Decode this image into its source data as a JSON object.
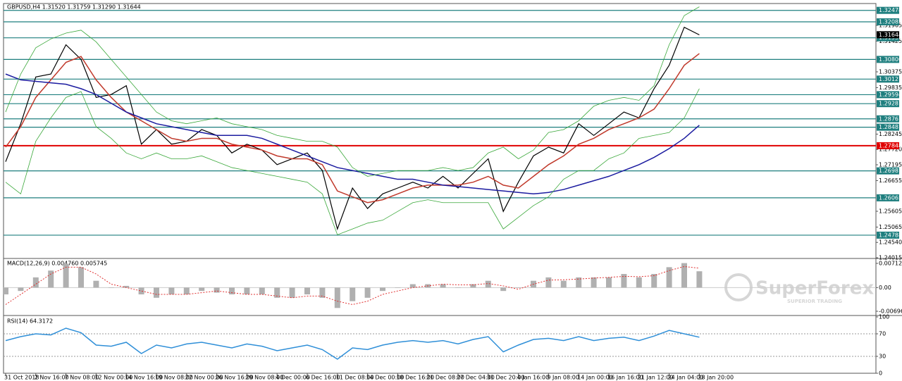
{
  "chart_data": [
    {
      "type": "line",
      "title": "GBPUSD,H4  1.31520 1.31759 1.31290 1.31644",
      "categories": [
        "31 Oct 2018",
        null,
        "2 Nov 16:00",
        null,
        "7 Nov 08:00",
        null,
        "12 Nov 00:00",
        null,
        "14 Nov 16:00",
        null,
        "19 Nov 08:00",
        null,
        "22 Nov 00:00",
        null,
        "26 Nov 16:00",
        null,
        "29 Nov 08:00",
        null,
        "4 Dec 00:00",
        null,
        "6 Dec 16:00",
        null,
        "11 Dec 08:00",
        null,
        "14 Dec 00:00",
        null,
        "18 Dec 16:00",
        null,
        "21 Dec 08:00",
        null,
        "27 Dec 04:00",
        null,
        "31 Dec 20:00",
        null,
        "4 Jan 16:00",
        null,
        "9 Jan 08:00",
        null,
        "14 Jan 00:00",
        null,
        "16 Jan 16:00",
        null,
        "21 Jan 12:00",
        null,
        "24 Jan 04:00",
        null,
        "28 Jan 20:00"
      ],
      "series": [
        {
          "color": "#000000",
          "values": [
            1.273,
            1.286,
            1.302,
            1.303,
            1.313,
            1.308,
            1.295,
            1.296,
            1.299,
            1.279,
            1.284,
            1.279,
            1.28,
            1.284,
            1.282,
            1.276,
            1.279,
            1.277,
            1.272,
            1.274,
            1.276,
            1.27,
            1.25,
            1.264,
            1.257,
            1.262,
            1.264,
            1.266,
            1.264,
            1.268,
            1.264,
            1.269,
            1.274,
            1.256,
            1.266,
            1.275,
            1.278,
            1.276,
            1.286,
            1.282,
            1.286,
            1.29,
            1.288,
            1.298,
            1.306,
            1.319,
            1.3164
          ]
        },
        {
          "color": "#c0392b",
          "values": [
            1.278,
            1.285,
            1.295,
            1.301,
            1.307,
            1.309,
            1.301,
            1.295,
            1.29,
            1.287,
            1.284,
            1.281,
            1.28,
            1.281,
            1.281,
            1.279,
            1.278,
            1.277,
            1.275,
            1.274,
            1.274,
            1.272,
            1.263,
            1.261,
            1.259,
            1.26,
            1.262,
            1.264,
            1.265,
            1.265,
            1.265,
            1.266,
            1.268,
            1.265,
            1.264,
            1.268,
            1.272,
            1.275,
            1.279,
            1.281,
            1.284,
            1.286,
            1.288,
            1.291,
            1.298,
            1.306,
            1.31
          ]
        },
        {
          "color": "#1c1ca0",
          "values": [
            1.303,
            1.301,
            1.3005,
            1.3,
            1.2995,
            1.298,
            1.296,
            1.293,
            1.29,
            1.288,
            1.286,
            1.285,
            1.284,
            1.283,
            1.282,
            1.282,
            1.282,
            1.281,
            1.279,
            1.277,
            1.275,
            1.273,
            1.271,
            1.27,
            1.269,
            1.268,
            1.267,
            1.267,
            1.266,
            1.265,
            1.2645,
            1.264,
            1.2635,
            1.263,
            1.2625,
            1.262,
            1.2625,
            1.2635,
            1.265,
            1.2665,
            1.268,
            1.27,
            1.272,
            1.2745,
            1.2775,
            1.281,
            1.2855
          ]
        },
        {
          "color": "#3aa83a",
          "values": [
            1.29,
            1.303,
            1.312,
            1.315,
            1.317,
            1.318,
            1.314,
            1.308,
            1.302,
            1.296,
            1.29,
            1.287,
            1.286,
            1.287,
            1.288,
            1.286,
            1.285,
            1.284,
            1.282,
            1.281,
            1.28,
            1.28,
            1.278,
            1.271,
            1.268,
            1.269,
            1.27,
            1.27,
            1.27,
            1.271,
            1.27,
            1.271,
            1.276,
            1.278,
            1.274,
            1.277,
            1.283,
            1.284,
            1.287,
            1.292,
            1.294,
            1.295,
            1.294,
            1.299,
            1.313,
            1.323,
            1.326
          ]
        },
        {
          "color": "#3aa83a",
          "values": [
            1.266,
            1.262,
            1.28,
            1.288,
            1.295,
            1.297,
            1.285,
            1.281,
            1.276,
            1.274,
            1.276,
            1.274,
            1.274,
            1.275,
            1.273,
            1.271,
            1.27,
            1.269,
            1.268,
            1.267,
            1.266,
            1.262,
            1.248,
            1.25,
            1.252,
            1.253,
            1.256,
            1.259,
            1.26,
            1.259,
            1.259,
            1.259,
            1.259,
            1.25,
            1.254,
            1.258,
            1.261,
            1.267,
            1.27,
            1.27,
            1.274,
            1.276,
            1.281,
            1.282,
            1.283,
            1.288,
            1.298
          ]
        }
      ],
      "ylim": [
        1.24015,
        1.32712
      ],
      "yticks": [
        1.31965,
        1.31425,
        1.30375,
        1.29835,
        1.28245,
        {
          "value": 1.2772,
          "label": "1.27720"
        },
        1.27195,
        1.26655,
        1.25605,
        1.25065,
        {
          "value": 1.2454,
          "label": "1.24540"
        },
        1.24015
      ],
      "levels": [
        1.32478,
        1.32085,
        1.31539,
        {
          "value": 1.308,
          "label": "1.30800"
        },
        1.30127,
        1.29594,
        1.29287,
        1.28767,
        1.28481,
        1.26987,
        1.26065,
        1.24788
      ],
      "level_color": "#1f7f7f",
      "key_level": 1.27848,
      "key_level_color": "#e00000",
      "last_price": 1.31644
    },
    {
      "type": "bar",
      "title": "MACD(12,26,9) 0.004760 0.005745",
      "series": [
        {
          "color": "#b0b0b0",
          "values": [
            -0.002,
            -0.001,
            0.003,
            0.005,
            0.007,
            0.006,
            0.002,
            0.0,
            0.0005,
            -0.002,
            -0.003,
            -0.002,
            -0.002,
            -0.001,
            -0.0015,
            -0.002,
            -0.002,
            -0.002,
            -0.003,
            -0.003,
            -0.002,
            -0.003,
            -0.006,
            -0.004,
            -0.003,
            -0.001,
            0.0,
            0.001,
            0.001,
            0.001,
            0.0,
            0.001,
            0.002,
            -0.001,
            0.0,
            0.002,
            0.003,
            0.002,
            0.003,
            0.003,
            0.003,
            0.004,
            0.003,
            0.004,
            0.006,
            0.0072,
            0.0048
          ]
        },
        {
          "color": "#e03030",
          "values": [
            -0.005,
            -0.002,
            0.001,
            0.004,
            0.006,
            0.006,
            0.004,
            0.001,
            0.0,
            -0.001,
            -0.002,
            -0.002,
            -0.002,
            -0.0015,
            -0.001,
            -0.0015,
            -0.002,
            -0.002,
            -0.0025,
            -0.003,
            -0.0025,
            -0.0025,
            -0.004,
            -0.005,
            -0.004,
            -0.002,
            -0.001,
            0.0,
            0.0005,
            0.001,
            0.0008,
            0.0008,
            0.0012,
            0.0005,
            -0.0005,
            0.001,
            0.0022,
            0.0023,
            0.0025,
            0.0028,
            0.003,
            0.0033,
            0.0032,
            0.0035,
            0.005,
            0.0062,
            0.0057
          ]
        }
      ],
      "ylim": [
        -0.00801,
        0.00836
      ],
      "yticks": [
        0.007121,
        {
          "value": 0,
          "label": "0.00"
        },
        -0.006969
      ]
    },
    {
      "type": "line",
      "title": "RSI(14) 64.3172",
      "series": [
        {
          "color": "#2f8fd8",
          "values": [
            58,
            65,
            70,
            68,
            80,
            72,
            50,
            48,
            55,
            35,
            50,
            45,
            52,
            55,
            50,
            45,
            52,
            48,
            40,
            45,
            50,
            42,
            25,
            45,
            42,
            50,
            55,
            58,
            55,
            58,
            52,
            60,
            65,
            38,
            50,
            60,
            62,
            58,
            65,
            58,
            62,
            64,
            58,
            66,
            76,
            70,
            64
          ]
        }
      ],
      "ylim": [
        0,
        100
      ],
      "yticks": [
        100,
        70,
        30,
        0
      ]
    }
  ],
  "watermark": {
    "brand": "SuperForex",
    "tagline": "SUPERIOR TRADING"
  }
}
